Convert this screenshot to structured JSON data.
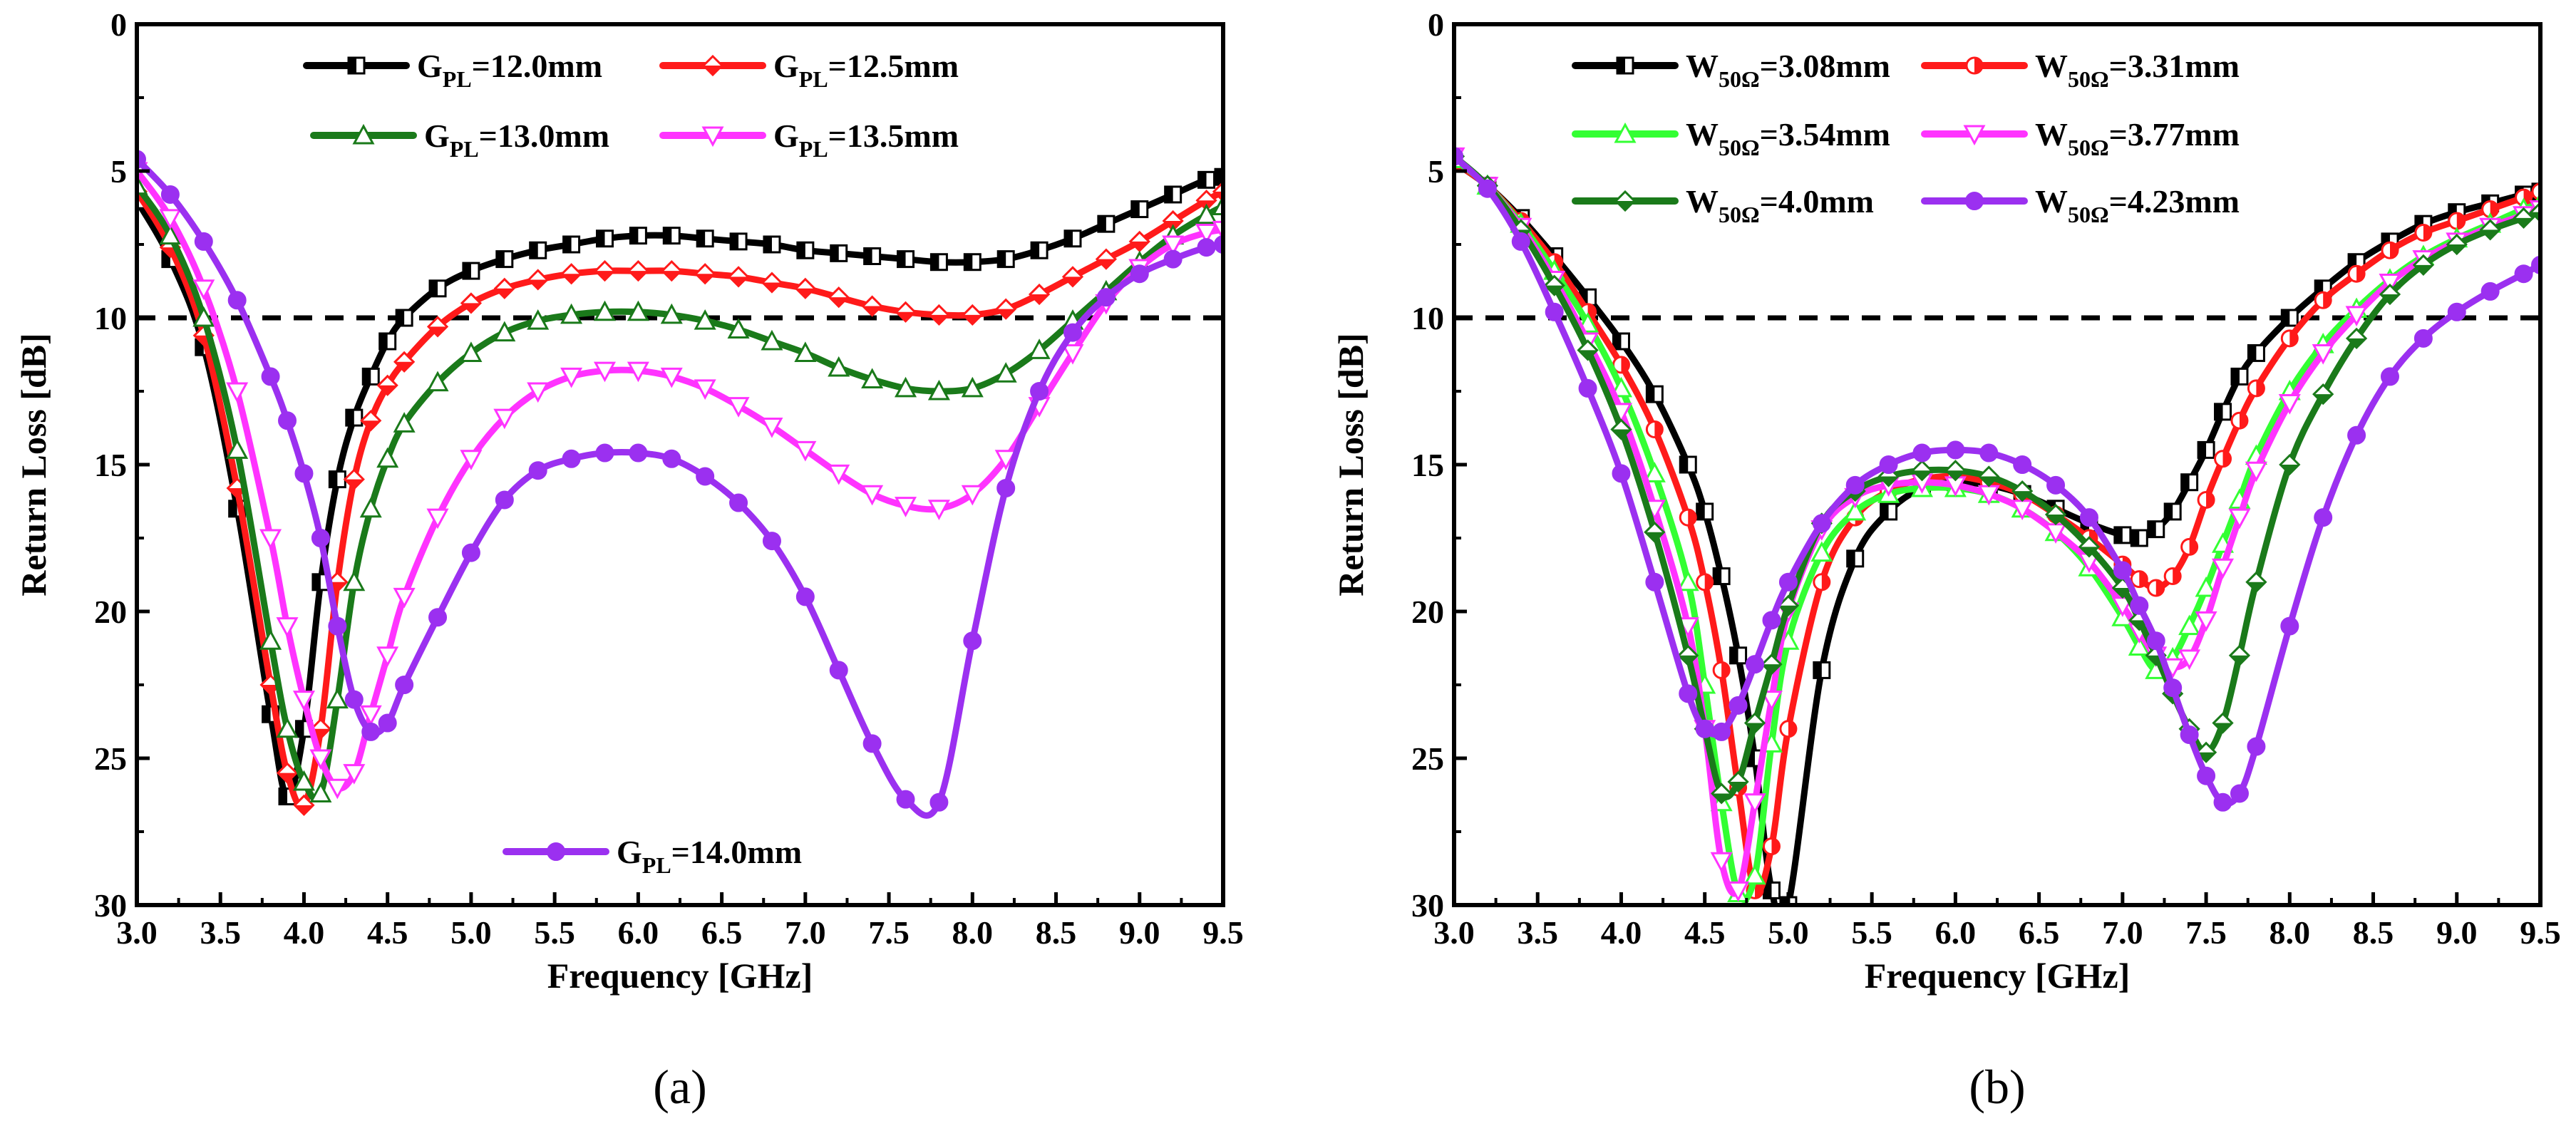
{
  "chart_data": [
    {
      "type": "line",
      "panel_label": "(a)",
      "xlabel": "Frequency [GHz]",
      "ylabel": "Return Loss [dB]",
      "xlim": [
        3.0,
        9.5
      ],
      "ylim": [
        0,
        30
      ],
      "y_inverted": true,
      "xticks": [
        "3.0",
        "3.5",
        "4.0",
        "4.5",
        "5.0",
        "5.5",
        "6.0",
        "6.5",
        "7.0",
        "7.5",
        "8.0",
        "8.5",
        "9.0",
        "9.5"
      ],
      "yticks": [
        "0",
        "5",
        "10",
        "15",
        "20",
        "25",
        "30"
      ],
      "threshold": 10,
      "x": [
        3.0,
        3.2,
        3.4,
        3.6,
        3.8,
        3.9,
        4.0,
        4.1,
        4.2,
        4.3,
        4.4,
        4.5,
        4.6,
        4.8,
        5.0,
        5.2,
        5.4,
        5.6,
        5.8,
        6.0,
        6.2,
        6.4,
        6.6,
        6.8,
        7.0,
        7.2,
        7.4,
        7.6,
        7.8,
        8.0,
        8.2,
        8.4,
        8.6,
        8.8,
        9.0,
        9.2,
        9.4,
        9.5
      ],
      "series": [
        {
          "name": "G",
          "sub": "PL",
          "suffix": "=12.0mm",
          "color": "#000000",
          "marker": "square-half",
          "values": [
            6.0,
            8.0,
            11.0,
            16.5,
            23.5,
            26.3,
            24.0,
            19.0,
            15.5,
            13.4,
            12.0,
            10.8,
            10.0,
            9.0,
            8.4,
            8.0,
            7.7,
            7.5,
            7.3,
            7.2,
            7.2,
            7.3,
            7.4,
            7.5,
            7.7,
            7.8,
            7.9,
            8.0,
            8.1,
            8.1,
            8.0,
            7.7,
            7.3,
            6.8,
            6.3,
            5.8,
            5.3,
            5.2
          ]
        },
        {
          "name": "G",
          "sub": "PL",
          "suffix": "=12.5mm",
          "color": "#ff1a1a",
          "marker": "diamond-half",
          "values": [
            5.7,
            7.6,
            10.6,
            15.8,
            22.5,
            25.5,
            26.6,
            24.0,
            19.0,
            15.5,
            13.5,
            12.3,
            11.5,
            10.3,
            9.5,
            9.0,
            8.7,
            8.5,
            8.4,
            8.4,
            8.4,
            8.5,
            8.6,
            8.8,
            9.0,
            9.3,
            9.6,
            9.8,
            9.9,
            9.9,
            9.7,
            9.2,
            8.6,
            8.0,
            7.4,
            6.7,
            6.0,
            5.7
          ]
        },
        {
          "name": "G",
          "sub": "PL",
          "suffix": "=13.0mm",
          "color": "#1a7a1a",
          "marker": "triangle-up",
          "values": [
            5.5,
            7.2,
            10.0,
            14.5,
            21.0,
            24.0,
            25.8,
            26.2,
            23.0,
            19.0,
            16.5,
            14.8,
            13.6,
            12.2,
            11.2,
            10.5,
            10.1,
            9.9,
            9.8,
            9.8,
            9.9,
            10.1,
            10.4,
            10.8,
            11.2,
            11.7,
            12.1,
            12.4,
            12.5,
            12.4,
            11.9,
            11.1,
            10.1,
            9.1,
            8.1,
            7.2,
            6.5,
            6.2
          ]
        },
        {
          "name": "G",
          "sub": "PL",
          "suffix": "=13.5mm",
          "color": "#ff33ff",
          "marker": "triangle-down",
          "values": [
            5.0,
            6.6,
            9.0,
            12.5,
            17.5,
            20.5,
            23.0,
            25.0,
            26.0,
            25.5,
            23.5,
            21.5,
            19.5,
            16.8,
            14.8,
            13.4,
            12.5,
            12.0,
            11.8,
            11.8,
            12.0,
            12.4,
            13.0,
            13.7,
            14.5,
            15.3,
            16.0,
            16.4,
            16.5,
            16.0,
            14.8,
            13.0,
            11.2,
            9.5,
            8.3,
            7.5,
            7.1,
            7.0
          ]
        },
        {
          "name": "G",
          "sub": "PL",
          "suffix": "=14.0mm",
          "color": "#9b30f0",
          "marker": "circle",
          "values": [
            4.6,
            5.8,
            7.4,
            9.4,
            12.0,
            13.5,
            15.3,
            17.5,
            20.5,
            23.0,
            24.1,
            23.8,
            22.5,
            20.2,
            18.0,
            16.2,
            15.2,
            14.8,
            14.6,
            14.6,
            14.8,
            15.4,
            16.3,
            17.6,
            19.5,
            22.0,
            24.5,
            26.4,
            26.5,
            21.0,
            15.8,
            12.5,
            10.5,
            9.3,
            8.5,
            8.0,
            7.6,
            7.5
          ]
        }
      ]
    },
    {
      "type": "line",
      "panel_label": "(b)",
      "xlabel": "Frequency [GHz]",
      "ylabel": "Return Loss [dB]",
      "xlim": [
        3.0,
        9.5
      ],
      "ylim": [
        0,
        30
      ],
      "y_inverted": true,
      "xticks": [
        "3.0",
        "3.5",
        "4.0",
        "4.5",
        "5.0",
        "5.5",
        "6.0",
        "6.5",
        "7.0",
        "7.5",
        "8.0",
        "8.5",
        "9.0",
        "9.5"
      ],
      "yticks": [
        "0",
        "5",
        "10",
        "15",
        "20",
        "25",
        "30"
      ],
      "threshold": 10,
      "x": [
        3.0,
        3.2,
        3.4,
        3.6,
        3.8,
        4.0,
        4.2,
        4.4,
        4.5,
        4.6,
        4.7,
        4.8,
        4.9,
        5.0,
        5.2,
        5.4,
        5.6,
        5.8,
        6.0,
        6.2,
        6.4,
        6.6,
        6.8,
        7.0,
        7.1,
        7.2,
        7.3,
        7.4,
        7.5,
        7.6,
        7.7,
        7.8,
        8.0,
        8.2,
        8.4,
        8.6,
        8.8,
        9.0,
        9.2,
        9.4,
        9.5
      ],
      "series": [
        {
          "name": "W",
          "sub": "50Ω",
          "suffix": "=3.08mm",
          "color": "#000000",
          "marker": "square-half",
          "values": [
            4.7,
            5.5,
            6.6,
            7.9,
            9.3,
            10.8,
            12.6,
            15.0,
            16.6,
            18.8,
            21.5,
            25.0,
            29.5,
            30.0,
            22.0,
            18.2,
            16.6,
            15.8,
            15.6,
            15.7,
            16.0,
            16.5,
            17.0,
            17.4,
            17.5,
            17.2,
            16.6,
            15.6,
            14.5,
            13.2,
            12.0,
            11.2,
            10.0,
            9.0,
            8.1,
            7.4,
            6.8,
            6.4,
            6.1,
            5.8,
            5.7
          ]
        },
        {
          "name": "W",
          "sub": "50Ω",
          "suffix": "=3.31mm",
          "color": "#ff1a1a",
          "marker": "circle-half",
          "values": [
            4.7,
            5.5,
            6.7,
            8.1,
            9.8,
            11.6,
            13.8,
            16.8,
            19.0,
            22.0,
            26.0,
            29.5,
            28.0,
            24.0,
            19.0,
            16.8,
            15.9,
            15.5,
            15.4,
            15.6,
            16.0,
            16.7,
            17.5,
            18.4,
            18.9,
            19.2,
            18.8,
            17.8,
            16.2,
            14.8,
            13.5,
            12.4,
            10.7,
            9.4,
            8.5,
            7.7,
            7.1,
            6.7,
            6.3,
            5.9,
            5.7
          ]
        },
        {
          "name": "W",
          "sub": "50Ω",
          "suffix": "=3.54mm",
          "color": "#33ff33",
          "marker": "triangle-up",
          "values": [
            4.6,
            5.5,
            6.8,
            8.4,
            10.2,
            12.4,
            15.3,
            19.0,
            22.5,
            26.5,
            29.6,
            29.0,
            24.5,
            21.0,
            18.0,
            16.6,
            16.0,
            15.8,
            15.8,
            16.0,
            16.5,
            17.3,
            18.5,
            20.2,
            21.2,
            22.0,
            21.6,
            20.5,
            19.2,
            17.7,
            16.2,
            14.7,
            12.5,
            10.9,
            9.7,
            8.7,
            7.9,
            7.3,
            6.8,
            6.3,
            6.1
          ]
        },
        {
          "name": "W",
          "sub": "50Ω",
          "suffix": "=3.77mm",
          "color": "#ff33ff",
          "marker": "triangle-down",
          "values": [
            4.5,
            5.5,
            6.9,
            8.7,
            10.8,
            13.2,
            16.5,
            20.5,
            24.0,
            28.5,
            29.5,
            26.5,
            23.0,
            20.0,
            17.2,
            16.1,
            15.7,
            15.6,
            15.7,
            16.0,
            16.5,
            17.3,
            18.3,
            19.8,
            20.7,
            21.5,
            21.9,
            21.6,
            20.3,
            18.5,
            16.8,
            15.2,
            12.9,
            11.2,
            9.9,
            8.8,
            8.0,
            7.4,
            6.9,
            6.5,
            6.3
          ]
        },
        {
          "name": "W",
          "sub": "50Ω",
          "suffix": "=4.0mm",
          "color": "#1a7a1a",
          "marker": "diamond-half",
          "values": [
            4.5,
            5.5,
            7.0,
            8.9,
            11.1,
            13.8,
            17.3,
            21.5,
            24.0,
            26.2,
            25.8,
            23.8,
            21.8,
            19.8,
            17.0,
            15.9,
            15.4,
            15.2,
            15.2,
            15.4,
            15.9,
            16.7,
            17.8,
            19.2,
            20.3,
            21.5,
            22.8,
            24.0,
            24.8,
            23.8,
            21.5,
            19.0,
            15.0,
            12.6,
            10.7,
            9.2,
            8.2,
            7.5,
            7.0,
            6.6,
            6.4
          ]
        },
        {
          "name": "W",
          "sub": "50Ω",
          "suffix": "=4.23mm",
          "color": "#9b30f0",
          "marker": "circle",
          "values": [
            4.5,
            5.6,
            7.4,
            9.8,
            12.4,
            15.3,
            19.0,
            22.8,
            24.0,
            24.1,
            23.2,
            21.8,
            20.3,
            19.0,
            17.0,
            15.7,
            15.0,
            14.6,
            14.5,
            14.6,
            15.0,
            15.7,
            16.8,
            18.6,
            19.8,
            21.0,
            22.6,
            24.2,
            25.6,
            26.5,
            26.2,
            24.6,
            20.5,
            16.8,
            14.0,
            12.0,
            10.7,
            9.8,
            9.1,
            8.5,
            8.2
          ]
        }
      ]
    }
  ]
}
